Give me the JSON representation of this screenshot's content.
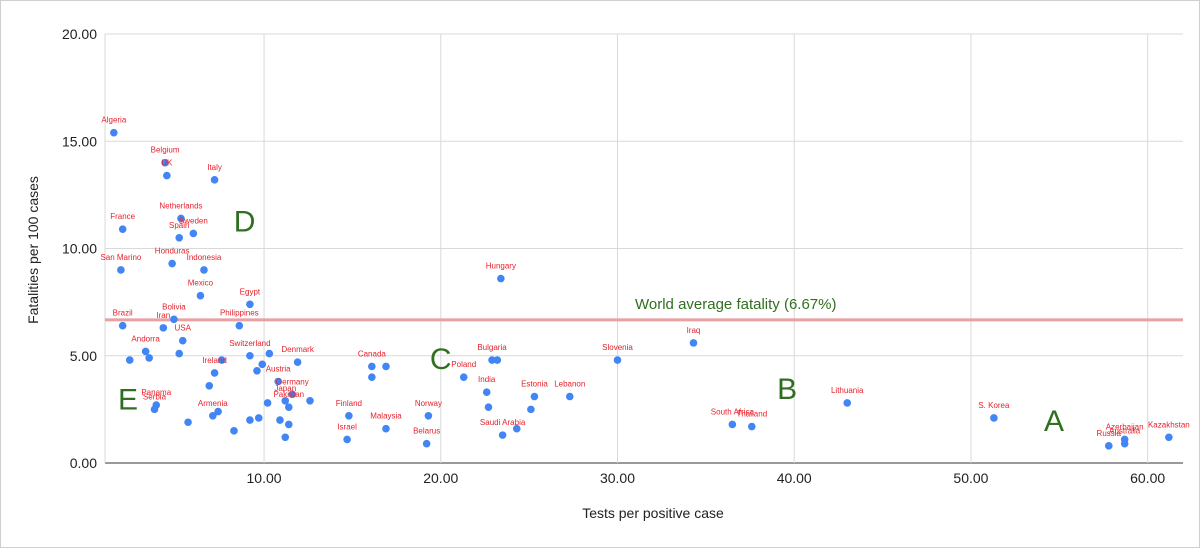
{
  "chart_data": {
    "type": "scatter",
    "title": "",
    "xlabel": "Tests per positive case",
    "ylabel": "Fatalities per 100 cases",
    "xlim": [
      1,
      62
    ],
    "ylim": [
      0,
      20
    ],
    "grid": true,
    "x_ticks": [
      "10.00",
      "20.00",
      "30.00",
      "40.00",
      "50.00",
      "60.00"
    ],
    "x_tick_values": [
      10,
      20,
      30,
      40,
      50,
      60
    ],
    "y_ticks": [
      "0.00",
      "5.00",
      "10.00",
      "15.00",
      "20.00"
    ],
    "y_tick_values": [
      0,
      5,
      10,
      15,
      20
    ],
    "point_color": "#4285f4",
    "label_color": "#e8212b",
    "reference_line": {
      "y": 6.67,
      "label": "World average fatality (6.67%)",
      "color": "#e8a0a0"
    },
    "regions": [
      {
        "label": "A",
        "x": 54.7,
        "y": 2.0
      },
      {
        "label": "B",
        "x": 39.6,
        "y": 3.5
      },
      {
        "label": "C",
        "x": 20.0,
        "y": 4.9
      },
      {
        "label": "D",
        "x": 8.9,
        "y": 11.3
      },
      {
        "label": "E",
        "x": 2.3,
        "y": 3.0
      }
    ],
    "points": [
      {
        "x": 1.5,
        "y": 15.4,
        "label": "Algeria"
      },
      {
        "x": 4.4,
        "y": 14.0,
        "label": "Belgium"
      },
      {
        "x": 4.5,
        "y": 13.4,
        "label": "UK"
      },
      {
        "x": 7.2,
        "y": 13.2,
        "label": "Italy"
      },
      {
        "x": 5.3,
        "y": 11.4,
        "label": "Netherlands"
      },
      {
        "x": 6.0,
        "y": 10.7,
        "label": "Sweden"
      },
      {
        "x": 5.2,
        "y": 10.5,
        "label": "Spain"
      },
      {
        "x": 2.0,
        "y": 10.9,
        "label": "France"
      },
      {
        "x": 4.8,
        "y": 9.3,
        "label": "Honduras"
      },
      {
        "x": 6.6,
        "y": 9.0,
        "label": "Indonesia"
      },
      {
        "x": 1.9,
        "y": 9.0,
        "label": "San Marino"
      },
      {
        "x": 6.4,
        "y": 7.8,
        "label": "Mexico"
      },
      {
        "x": 9.2,
        "y": 7.4,
        "label": "Egypt"
      },
      {
        "x": 23.4,
        "y": 8.6,
        "label": "Hungary"
      },
      {
        "x": 4.9,
        "y": 6.7,
        "label": "Bolivia"
      },
      {
        "x": 2.0,
        "y": 6.4,
        "label": "Brazil"
      },
      {
        "x": 8.6,
        "y": 6.4,
        "label": "Philippines"
      },
      {
        "x": 4.3,
        "y": 6.3,
        "label": "Iran"
      },
      {
        "x": 34.3,
        "y": 5.6,
        "label": "Iraq"
      },
      {
        "x": 5.4,
        "y": 5.7,
        "label": "USA"
      },
      {
        "x": 3.3,
        "y": 5.2,
        "label": "Andorra"
      },
      {
        "x": 2.4,
        "y": 4.8,
        "label": ""
      },
      {
        "x": 3.5,
        "y": 4.9,
        "label": ""
      },
      {
        "x": 5.2,
        "y": 5.1,
        "label": ""
      },
      {
        "x": 9.2,
        "y": 5.0,
        "label": "Switzerland"
      },
      {
        "x": 7.6,
        "y": 4.8,
        "label": ""
      },
      {
        "x": 10.3,
        "y": 5.1,
        "label": ""
      },
      {
        "x": 9.9,
        "y": 4.6,
        "label": ""
      },
      {
        "x": 9.6,
        "y": 4.3,
        "label": ""
      },
      {
        "x": 11.9,
        "y": 4.7,
        "label": "Denmark"
      },
      {
        "x": 7.2,
        "y": 4.2,
        "label": "Ireland"
      },
      {
        "x": 6.9,
        "y": 3.6,
        "label": ""
      },
      {
        "x": 10.8,
        "y": 3.8,
        "label": "Austria"
      },
      {
        "x": 11.6,
        "y": 3.2,
        "label": "Germany"
      },
      {
        "x": 12.6,
        "y": 2.9,
        "label": ""
      },
      {
        "x": 10.2,
        "y": 2.8,
        "label": ""
      },
      {
        "x": 11.2,
        "y": 2.9,
        "label": "Japan"
      },
      {
        "x": 11.4,
        "y": 2.6,
        "label": "Pakistan"
      },
      {
        "x": 16.1,
        "y": 4.5,
        "label": "Canada"
      },
      {
        "x": 16.9,
        "y": 4.5,
        "label": ""
      },
      {
        "x": 16.1,
        "y": 4.0,
        "label": ""
      },
      {
        "x": 21.3,
        "y": 4.0,
        "label": "Poland"
      },
      {
        "x": 22.9,
        "y": 4.8,
        "label": "Bulgaria"
      },
      {
        "x": 23.2,
        "y": 4.8,
        "label": ""
      },
      {
        "x": 30.0,
        "y": 4.8,
        "label": "Slovenia"
      },
      {
        "x": 22.6,
        "y": 3.3,
        "label": "India"
      },
      {
        "x": 27.3,
        "y": 3.1,
        "label": "Lebanon"
      },
      {
        "x": 25.3,
        "y": 3.1,
        "label": "Estonia"
      },
      {
        "x": 22.7,
        "y": 2.6,
        "label": ""
      },
      {
        "x": 25.1,
        "y": 2.5,
        "label": ""
      },
      {
        "x": 43.0,
        "y": 2.8,
        "label": "Lithuania"
      },
      {
        "x": 51.3,
        "y": 2.1,
        "label": "S. Korea"
      },
      {
        "x": 36.5,
        "y": 1.8,
        "label": "South Africa"
      },
      {
        "x": 37.6,
        "y": 1.7,
        "label": "Thailand"
      },
      {
        "x": 3.9,
        "y": 2.7,
        "label": "Panama"
      },
      {
        "x": 3.8,
        "y": 2.5,
        "label": "Serbia"
      },
      {
        "x": 5.7,
        "y": 1.9,
        "label": ""
      },
      {
        "x": 7.4,
        "y": 2.4,
        "label": ""
      },
      {
        "x": 7.1,
        "y": 2.2,
        "label": "Armenia"
      },
      {
        "x": 9.2,
        "y": 2.0,
        "label": ""
      },
      {
        "x": 9.7,
        "y": 2.1,
        "label": ""
      },
      {
        "x": 8.3,
        "y": 1.5,
        "label": ""
      },
      {
        "x": 10.9,
        "y": 2.0,
        "label": ""
      },
      {
        "x": 11.4,
        "y": 1.8,
        "label": ""
      },
      {
        "x": 11.2,
        "y": 1.2,
        "label": ""
      },
      {
        "x": 14.8,
        "y": 2.2,
        "label": "Finland"
      },
      {
        "x": 14.7,
        "y": 1.1,
        "label": "Israel"
      },
      {
        "x": 16.9,
        "y": 1.6,
        "label": "Malaysia"
      },
      {
        "x": 19.3,
        "y": 2.2,
        "label": "Norway"
      },
      {
        "x": 19.2,
        "y": 0.9,
        "label": "Belarus"
      },
      {
        "x": 23.5,
        "y": 1.3,
        "label": "Saudi Arabia"
      },
      {
        "x": 24.3,
        "y": 1.6,
        "label": ""
      },
      {
        "x": 57.8,
        "y": 0.8,
        "label": "Russia"
      },
      {
        "x": 58.7,
        "y": 1.1,
        "label": "Azerbaijan"
      },
      {
        "x": 58.7,
        "y": 0.9,
        "label": "Australia"
      },
      {
        "x": 61.2,
        "y": 1.2,
        "label": "Kazakhstan"
      }
    ]
  }
}
